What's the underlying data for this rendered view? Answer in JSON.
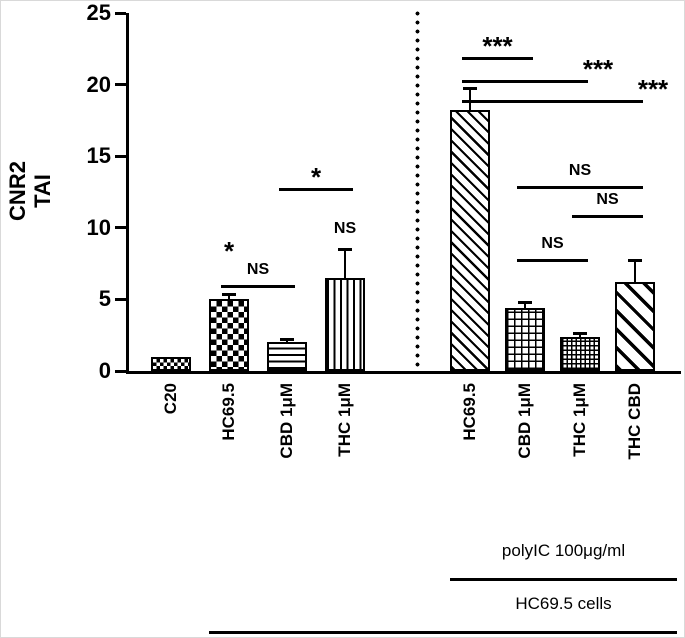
{
  "figure": {
    "y_axis_title_line1": "CNR2",
    "y_axis_title_line2": "TAI"
  },
  "chart_data": {
    "type": "bar",
    "ylabel": "CNR2 TAI",
    "ylim": [
      0,
      25
    ],
    "yticks": [
      0,
      5,
      10,
      15,
      20,
      25
    ],
    "categories": [
      "C20",
      "HC69.5",
      "CBD 1μM",
      "THC 1μM",
      "HC69.5",
      "CBD 1μM",
      "THC 1μM",
      "THC CBD"
    ],
    "values": [
      1.0,
      5.0,
      2.0,
      6.5,
      18.2,
      4.4,
      2.4,
      6.2
    ],
    "errors_upper": [
      0,
      0.35,
      0.2,
      2.0,
      1.5,
      0.35,
      0.2,
      1.5
    ],
    "bar_patterns": [
      "checker-fine",
      "checker",
      "hlines",
      "vlines",
      "diag-dense",
      "grid",
      "grid-fine",
      "diag-wide"
    ],
    "group_separator_after_index": 3,
    "significance": [
      {
        "kind": "text",
        "label": "*",
        "bar": 1,
        "y": 7.6
      },
      {
        "kind": "line",
        "label": "NS",
        "from": 1,
        "to": 2,
        "y": 6.0,
        "align": "center"
      },
      {
        "kind": "line",
        "label": "*",
        "from": 2,
        "to": 3,
        "y": 12.8,
        "align": "center"
      },
      {
        "kind": "text",
        "label": "NS",
        "bar": 3,
        "y": 8.9
      },
      {
        "kind": "line",
        "label": "***",
        "from": 4,
        "to": 5,
        "y": 21.9,
        "align": "center"
      },
      {
        "kind": "line",
        "label": "***",
        "from": 4,
        "to": 6,
        "y": 20.3,
        "align": "end"
      },
      {
        "kind": "line",
        "label": "***",
        "from": 4,
        "to": 7,
        "y": 18.9,
        "align": "end"
      },
      {
        "kind": "line",
        "label": "NS",
        "from": 5,
        "to": 7,
        "y": 12.9,
        "align": "center"
      },
      {
        "kind": "line",
        "label": "NS",
        "from": 5,
        "to": 6,
        "y": 7.8,
        "align": "center"
      },
      {
        "kind": "line",
        "label": "NS",
        "from": 6,
        "to": 7,
        "y": 10.9,
        "align": "center"
      }
    ],
    "bottom_brackets": [
      {
        "label": "polyIC 100μg/ml",
        "line_from": 4,
        "line_to": 7
      },
      {
        "label": "HC69.5 cells",
        "line_from": 1,
        "line_to": 7
      }
    ]
  }
}
